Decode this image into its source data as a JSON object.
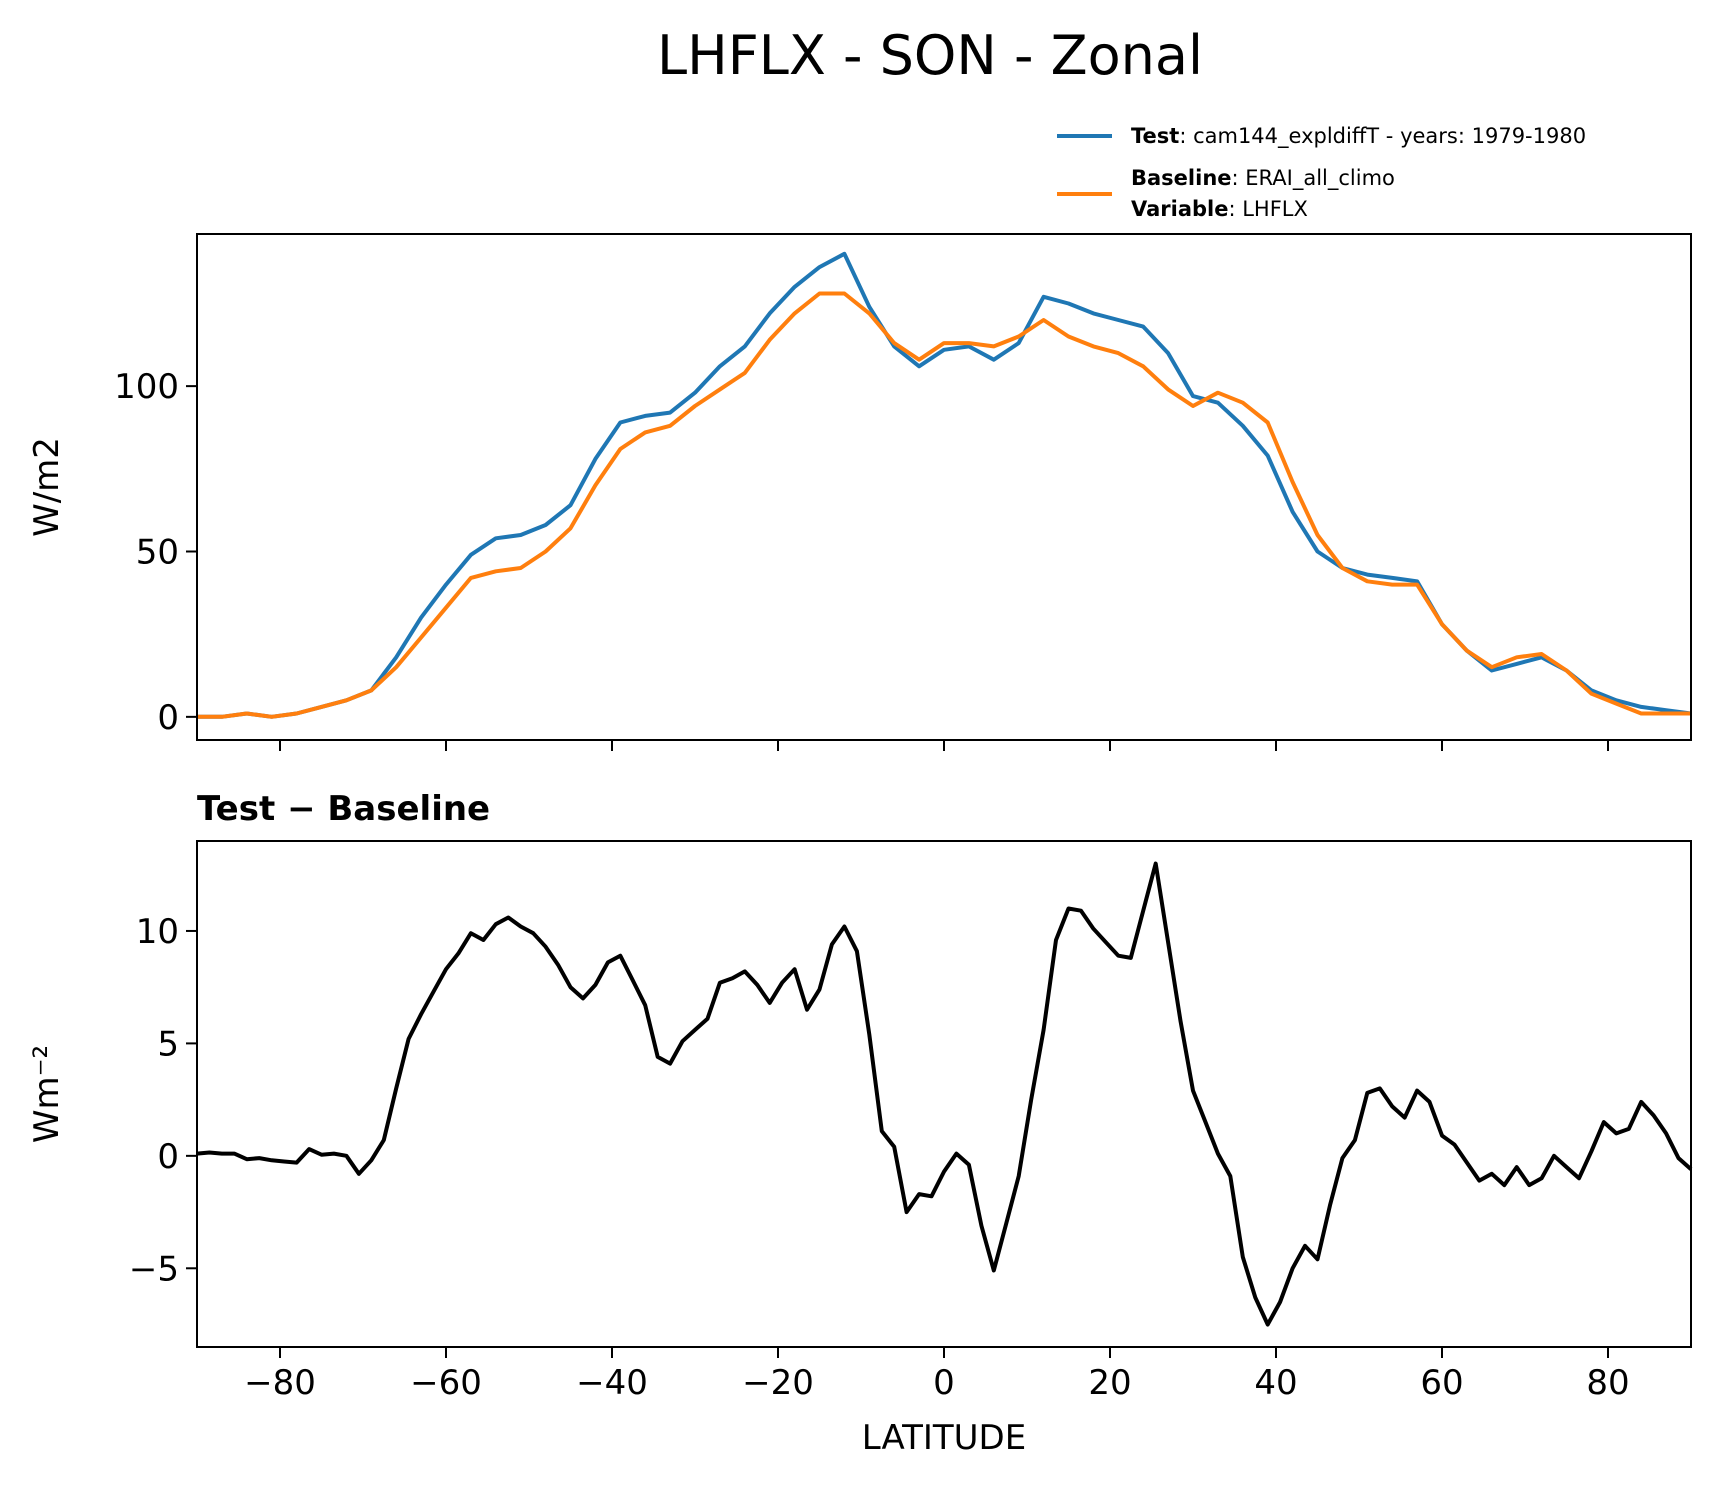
{
  "figure_title": "LHFLX - SON - Zonal",
  "colors": {
    "test": "#1f77b4",
    "baseline": "#ff7f0e",
    "diff": "#000000"
  },
  "legend": {
    "test_key": "Test",
    "test_text": ": cam144_expldiffT - years: 1979-1980",
    "baseline_key": "Baseline",
    "baseline_text": ": ERAI_all_climo",
    "variable_key": "Variable",
    "variable_text": ": LHFLX"
  },
  "chart_data": [
    {
      "type": "line",
      "title": "",
      "xlabel": "",
      "ylabel": "W/m2",
      "xlim": [
        -90,
        90
      ],
      "ylim": [
        -7,
        146
      ],
      "x_ticks": [
        -80,
        -60,
        -40,
        -20,
        0,
        20,
        40,
        60,
        80
      ],
      "y_ticks": [
        0,
        50,
        100
      ],
      "y_tick_labels": [
        "0",
        "50",
        "100"
      ],
      "legend_location": "above-right",
      "x": [
        -90,
        -87,
        -84,
        -81,
        -78,
        -75,
        -72,
        -69,
        -66,
        -63,
        -60,
        -57,
        -54,
        -51,
        -48,
        -45,
        -42,
        -39,
        -36,
        -33,
        -30,
        -27,
        -24,
        -21,
        -18,
        -15,
        -12,
        -9,
        -6,
        -3,
        0,
        3,
        6,
        9,
        12,
        15,
        18,
        21,
        24,
        27,
        30,
        33,
        36,
        39,
        42,
        45,
        48,
        51,
        54,
        57,
        60,
        63,
        66,
        69,
        72,
        75,
        78,
        81,
        84,
        87,
        90
      ],
      "series": [
        {
          "name": "Test",
          "values": [
            0,
            0,
            1,
            0,
            1,
            3,
            5,
            8,
            18,
            30,
            40,
            49,
            54,
            55,
            58,
            64,
            78,
            89,
            91,
            92,
            98,
            106,
            112,
            122,
            130,
            136,
            140,
            124,
            112,
            106,
            111,
            112,
            108,
            113,
            127,
            125,
            122,
            120,
            118,
            110,
            97,
            95,
            88,
            79,
            62,
            50,
            45,
            43,
            42,
            41,
            28,
            20,
            14,
            16,
            18,
            14,
            8,
            5,
            3,
            2,
            1
          ]
        },
        {
          "name": "Baseline",
          "values": [
            0,
            0,
            1,
            0,
            1,
            3,
            5,
            8,
            15,
            24,
            33,
            42,
            44,
            45,
            50,
            57,
            70,
            81,
            86,
            88,
            94,
            99,
            104,
            114,
            122,
            128,
            128,
            122,
            113,
            108,
            113,
            113,
            112,
            115,
            120,
            115,
            112,
            110,
            106,
            99,
            94,
            98,
            95,
            89,
            71,
            55,
            45,
            41,
            40,
            40,
            28,
            20,
            15,
            18,
            19,
            14,
            7,
            4,
            1,
            1,
            1
          ]
        }
      ]
    },
    {
      "type": "line",
      "title": "Test − Baseline",
      "xlabel": "LATITUDE",
      "ylabel": "Wm⁻²",
      "xlim": [
        -90,
        90
      ],
      "ylim": [
        -8.5,
        14
      ],
      "x_ticks": [
        -80,
        -60,
        -40,
        -20,
        0,
        20,
        40,
        60,
        80
      ],
      "x_tick_labels": [
        "−80",
        "−60",
        "−40",
        "−20",
        "0",
        "20",
        "40",
        "60",
        "80"
      ],
      "y_ticks": [
        -5,
        0,
        5,
        10
      ],
      "y_tick_labels": [
        "−5",
        "0",
        "5",
        "10"
      ],
      "x": [
        -90,
        -88.5,
        -87,
        -85.5,
        -84,
        -82.5,
        -81,
        -79.5,
        -78,
        -76.5,
        -75,
        -73.5,
        -72,
        -70.5,
        -69,
        -67.5,
        -66,
        -64.5,
        -63,
        -61.5,
        -60,
        -58.5,
        -57,
        -55.5,
        -54,
        -52.5,
        -51,
        -49.5,
        -48,
        -46.5,
        -45,
        -43.5,
        -42,
        -40.5,
        -39,
        -37.5,
        -36,
        -34.5,
        -33,
        -31.5,
        -30,
        -28.5,
        -27,
        -25.5,
        -24,
        -22.5,
        -21,
        -19.5,
        -18,
        -16.5,
        -15,
        -13.5,
        -12,
        -10.5,
        -9,
        -7.5,
        -6,
        -4.5,
        -3,
        -1.5,
        0,
        1.5,
        3,
        4.5,
        6,
        7.5,
        9,
        10.5,
        12,
        13.5,
        15,
        16.5,
        18,
        19.5,
        21,
        22.5,
        24,
        25.5,
        27,
        28.5,
        30,
        31.5,
        33,
        34.5,
        36,
        37.5,
        39,
        40.5,
        42,
        43.5,
        45,
        46.5,
        48,
        49.5,
        51,
        52.5,
        54,
        55.5,
        57,
        58.5,
        60,
        61.5,
        63,
        64.5,
        66,
        67.5,
        69,
        70.5,
        72,
        73.5,
        75,
        76.5,
        78,
        79.5,
        81,
        82.5,
        84,
        85.5,
        87,
        88.5,
        90
      ],
      "series": [
        {
          "name": "Test − Baseline",
          "values": [
            0.1,
            0.15,
            0.1,
            0.1,
            -0.15,
            -0.1,
            -0.2,
            -0.25,
            -0.3,
            0.3,
            0.05,
            0.1,
            0,
            -0.8,
            -0.2,
            0.7,
            3,
            5.2,
            6.3,
            7.3,
            8.3,
            9,
            9.9,
            9.6,
            10.3,
            10.6,
            10.2,
            9.9,
            9.3,
            8.5,
            7.5,
            7,
            7.6,
            8.6,
            8.9,
            7.8,
            6.7,
            4.4,
            4.1,
            5.1,
            5.6,
            6.1,
            7.7,
            7.9,
            8.2,
            7.6,
            6.8,
            7.7,
            8.3,
            6.5,
            7.4,
            9.4,
            10.2,
            9.1,
            5.4,
            1.1,
            0.4,
            -2.5,
            -1.7,
            -1.8,
            -0.7,
            0.1,
            -0.4,
            -3.1,
            -5.1,
            -3,
            -0.9,
            2.5,
            5.6,
            9.6,
            11,
            10.9,
            10.1,
            9.5,
            8.9,
            8.8,
            10.9,
            13,
            9.5,
            6,
            2.9,
            1.5,
            0.1,
            -0.9,
            -4.5,
            -6.3,
            -7.5,
            -6.5,
            -5,
            -4,
            -4.6,
            -2.2,
            -0.1,
            0.7,
            2.8,
            3,
            2.2,
            1.7,
            2.9,
            2.4,
            0.9,
            0.5,
            -0.3,
            -1.1,
            -0.8,
            -1.3,
            -0.5,
            -1.3,
            -1,
            0,
            -0.5,
            -1,
            0.2,
            1.5,
            1,
            1.2,
            2.4,
            1.8,
            1,
            -0.1,
            -0.6
          ]
        }
      ]
    }
  ]
}
